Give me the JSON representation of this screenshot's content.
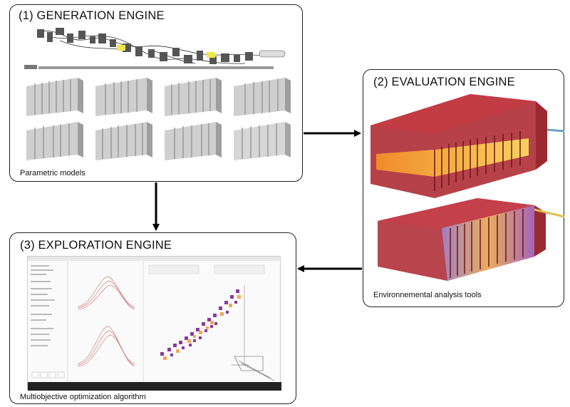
{
  "generation": {
    "title": "(1) GENERATION ENGINE",
    "caption": "Parametric models"
  },
  "evaluation": {
    "title": "(2) EVALUATION ENGINE",
    "caption": "Environnemental analysis tools"
  },
  "exploration": {
    "title": "(3) EXPLORATION ENGINE",
    "caption": "Multiobjective optimization algorithm"
  },
  "colors": {
    "arrow": "#000000",
    "box_red": "#b0313a",
    "glow_orange": "#f5a030",
    "scatter_purple": "#8a3a9a",
    "scatter_orange": "#f0a050"
  }
}
